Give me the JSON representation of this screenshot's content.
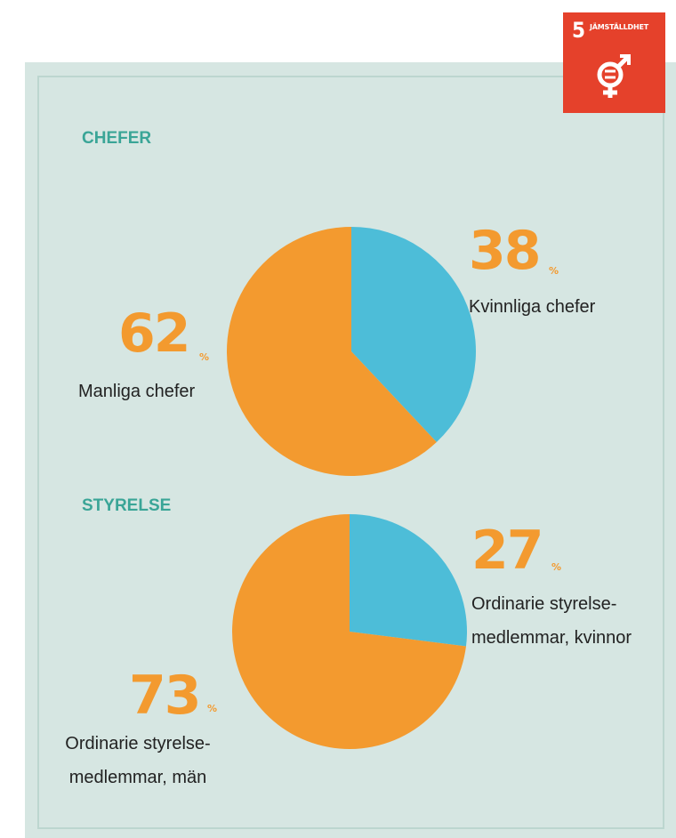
{
  "badge": {
    "number": "5",
    "label": "JÄMSTÄLLDHET"
  },
  "chart_data": [
    {
      "type": "pie",
      "title": "CHEFER",
      "unit": "%",
      "categories": [
        "Kvinnliga chefer",
        "Manliga chefer"
      ],
      "values": [
        38,
        62
      ],
      "colors": [
        "#4dbdd8",
        "#f39a2f"
      ]
    },
    {
      "type": "pie",
      "title": "STYRELSE",
      "unit": "%",
      "categories": [
        "Ordinarie styrelse-\nmedlemmar, kvinnor",
        "Ordinarie styrelse-\nmedlemmar, män"
      ],
      "values": [
        27,
        73
      ],
      "colors": [
        "#4dbdd8",
        "#f39a2f"
      ]
    }
  ]
}
